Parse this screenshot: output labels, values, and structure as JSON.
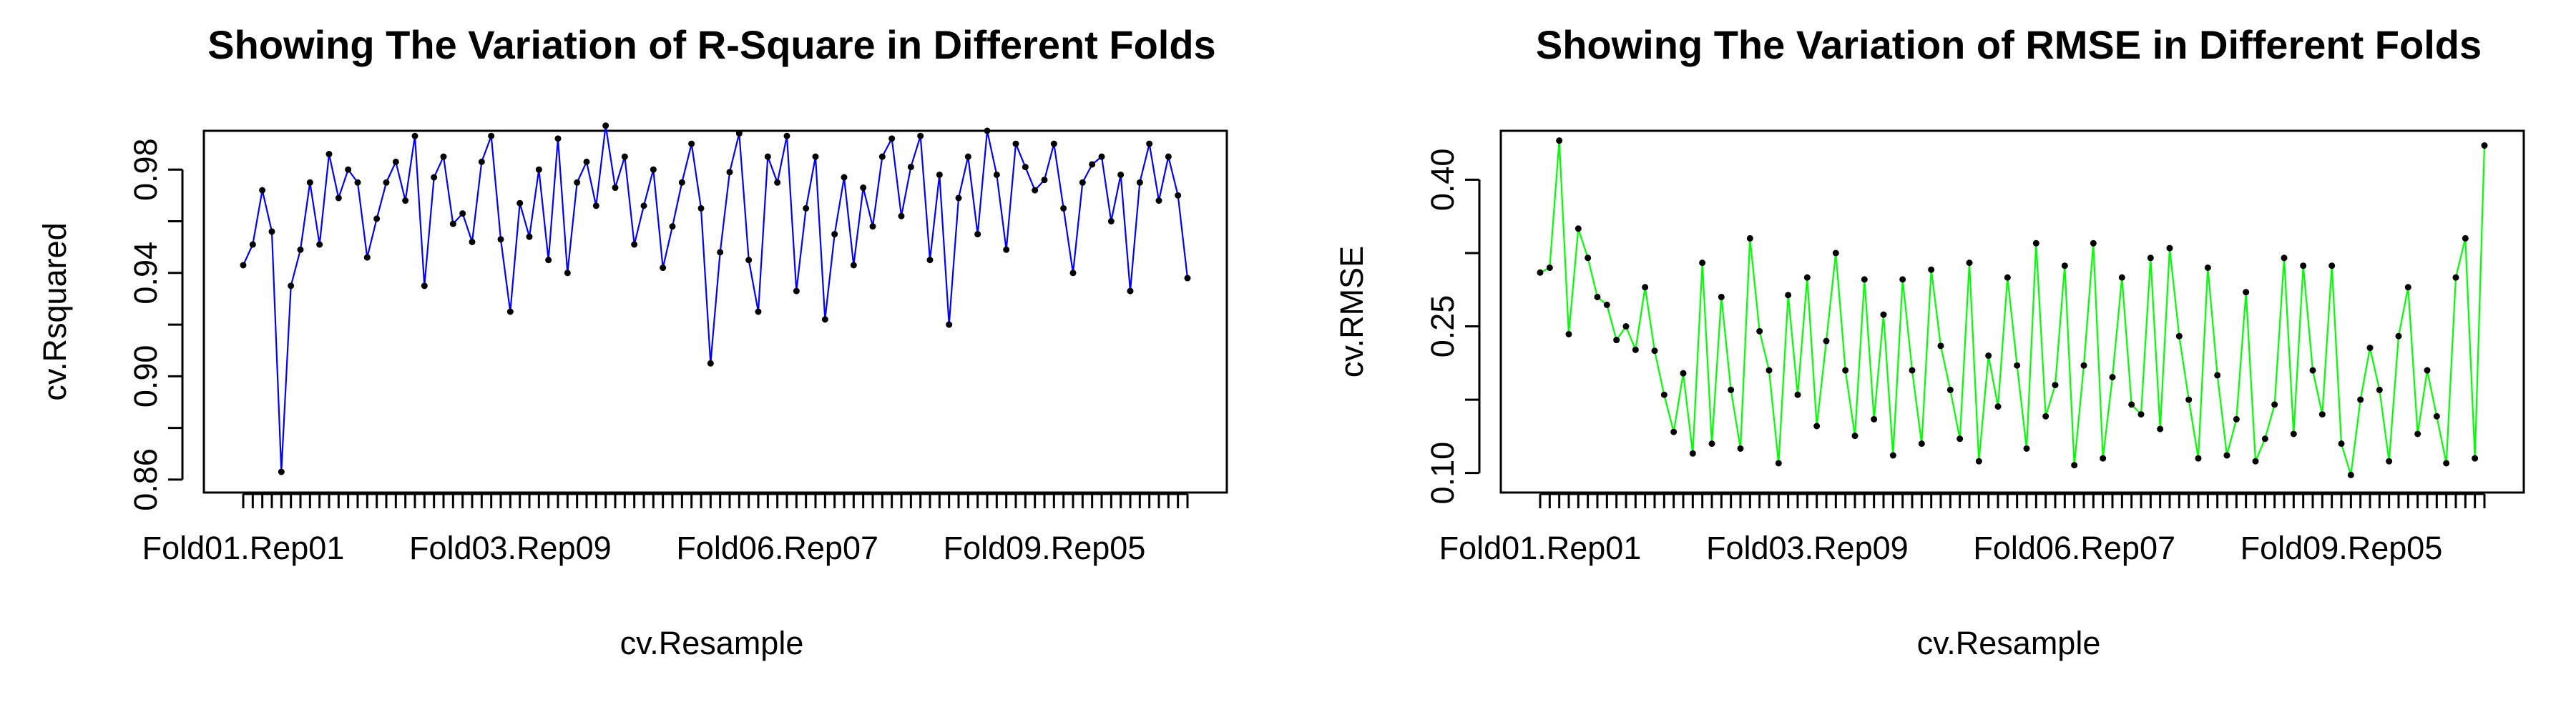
{
  "chart_data": [
    {
      "type": "line",
      "title": "Showing The Variation of R-Square in Different Folds",
      "xlabel": "cv.Resample",
      "ylabel": "cv.Rsquared",
      "line_color": "#0000FF",
      "ylim": [
        0.855,
        0.995
      ],
      "yticks": [
        0.86,
        0.9,
        0.94,
        0.98
      ],
      "ytick_labels": [
        "0.86",
        "0.90",
        "0.94",
        "0.98"
      ],
      "xtick_labels": [
        "Fold01.Rep01",
        "Fold03.Rep09",
        "Fold06.Rep07",
        "Fold09.Rep05"
      ],
      "xtick_label_index": [
        1,
        29,
        57,
        85
      ],
      "n_resamples": 100,
      "x": [
        1,
        2,
        3,
        4,
        5,
        6,
        7,
        8,
        9,
        10,
        11,
        12,
        13,
        14,
        15,
        16,
        17,
        18,
        19,
        20,
        21,
        22,
        23,
        24,
        25,
        26,
        27,
        28,
        29,
        30,
        31,
        32,
        33,
        34,
        35,
        36,
        37,
        38,
        39,
        40,
        41,
        42,
        43,
        44,
        45,
        46,
        47,
        48,
        49,
        50,
        51,
        52,
        53,
        54,
        55,
        56,
        57,
        58,
        59,
        60,
        61,
        62,
        63,
        64,
        65,
        66,
        67,
        68,
        69,
        70,
        71,
        72,
        73,
        74,
        75,
        76,
        77,
        78,
        79,
        80,
        81,
        82,
        83,
        84,
        85,
        86,
        87,
        88,
        89,
        90,
        91,
        92,
        93,
        94,
        95,
        96,
        97,
        98,
        99,
        100
      ],
      "values": [
        0.943,
        0.951,
        0.972,
        0.956,
        0.863,
        0.935,
        0.949,
        0.975,
        0.951,
        0.986,
        0.969,
        0.98,
        0.975,
        0.946,
        0.961,
        0.975,
        0.983,
        0.968,
        0.993,
        0.935,
        0.977,
        0.985,
        0.959,
        0.963,
        0.952,
        0.983,
        0.993,
        0.953,
        0.925,
        0.967,
        0.954,
        0.98,
        0.945,
        0.992,
        0.94,
        0.975,
        0.983,
        0.966,
        0.997,
        0.973,
        0.985,
        0.951,
        0.966,
        0.98,
        0.942,
        0.958,
        0.975,
        0.99,
        0.965,
        0.905,
        0.948,
        0.979,
        0.994,
        0.945,
        0.925,
        0.985,
        0.975,
        0.993,
        0.933,
        0.965,
        0.985,
        0.922,
        0.955,
        0.977,
        0.943,
        0.973,
        0.958,
        0.985,
        0.992,
        0.962,
        0.981,
        0.993,
        0.945,
        0.978,
        0.92,
        0.969,
        0.985,
        0.955,
        0.995,
        0.978,
        0.949,
        0.99,
        0.981,
        0.972,
        0.976,
        0.99,
        0.965,
        0.94,
        0.975,
        0.982,
        0.985,
        0.96,
        0.978,
        0.933,
        0.975,
        0.99,
        0.968,
        0.985,
        0.97,
        0.938
      ]
    },
    {
      "type": "line",
      "title": "Showing The Variation of RMSE in Different Folds",
      "xlabel": "cv.Resample",
      "ylabel": "cv.RMSE",
      "line_color": "#00FF00",
      "ylim": [
        0.08,
        0.45
      ],
      "yticks": [
        0.1,
        0.25,
        0.4
      ],
      "ytick_labels": [
        "0.10",
        "0.25",
        "0.40"
      ],
      "xtick_labels": [
        "Fold01.Rep01",
        "Fold03.Rep09",
        "Fold06.Rep07",
        "Fold09.Rep05"
      ],
      "xtick_label_index": [
        1,
        29,
        57,
        85
      ],
      "n_resamples": 100,
      "x": [
        1,
        2,
        3,
        4,
        5,
        6,
        7,
        8,
        9,
        10,
        11,
        12,
        13,
        14,
        15,
        16,
        17,
        18,
        19,
        20,
        21,
        22,
        23,
        24,
        25,
        26,
        27,
        28,
        29,
        30,
        31,
        32,
        33,
        34,
        35,
        36,
        37,
        38,
        39,
        40,
        41,
        42,
        43,
        44,
        45,
        46,
        47,
        48,
        49,
        50,
        51,
        52,
        53,
        54,
        55,
        56,
        57,
        58,
        59,
        60,
        61,
        62,
        63,
        64,
        65,
        66,
        67,
        68,
        69,
        70,
        71,
        72,
        73,
        74,
        75,
        76,
        77,
        78,
        79,
        80,
        81,
        82,
        83,
        84,
        85,
        86,
        87,
        88,
        89,
        90,
        91,
        92,
        93,
        94,
        95,
        96,
        97,
        98,
        99,
        100
      ],
      "values": [
        0.305,
        0.31,
        0.44,
        0.242,
        0.35,
        0.32,
        0.28,
        0.272,
        0.236,
        0.25,
        0.226,
        0.29,
        0.225,
        0.18,
        0.142,
        0.202,
        0.12,
        0.315,
        0.13,
        0.28,
        0.185,
        0.125,
        0.34,
        0.245,
        0.205,
        0.11,
        0.282,
        0.18,
        0.3,
        0.148,
        0.235,
        0.325,
        0.205,
        0.138,
        0.298,
        0.155,
        0.262,
        0.118,
        0.298,
        0.205,
        0.13,
        0.308,
        0.23,
        0.185,
        0.135,
        0.315,
        0.112,
        0.22,
        0.168,
        0.3,
        0.21,
        0.125,
        0.335,
        0.158,
        0.19,
        0.312,
        0.108,
        0.21,
        0.335,
        0.115,
        0.198,
        0.3,
        0.17,
        0.16,
        0.32,
        0.145,
        0.33,
        0.24,
        0.175,
        0.115,
        0.31,
        0.2,
        0.118,
        0.155,
        0.285,
        0.112,
        0.135,
        0.17,
        0.32,
        0.14,
        0.312,
        0.205,
        0.16,
        0.312,
        0.13,
        0.098,
        0.175,
        0.228,
        0.185,
        0.112,
        0.24,
        0.29,
        0.14,
        0.205,
        0.158,
        0.11,
        0.3,
        0.34,
        0.115,
        0.435
      ]
    }
  ]
}
